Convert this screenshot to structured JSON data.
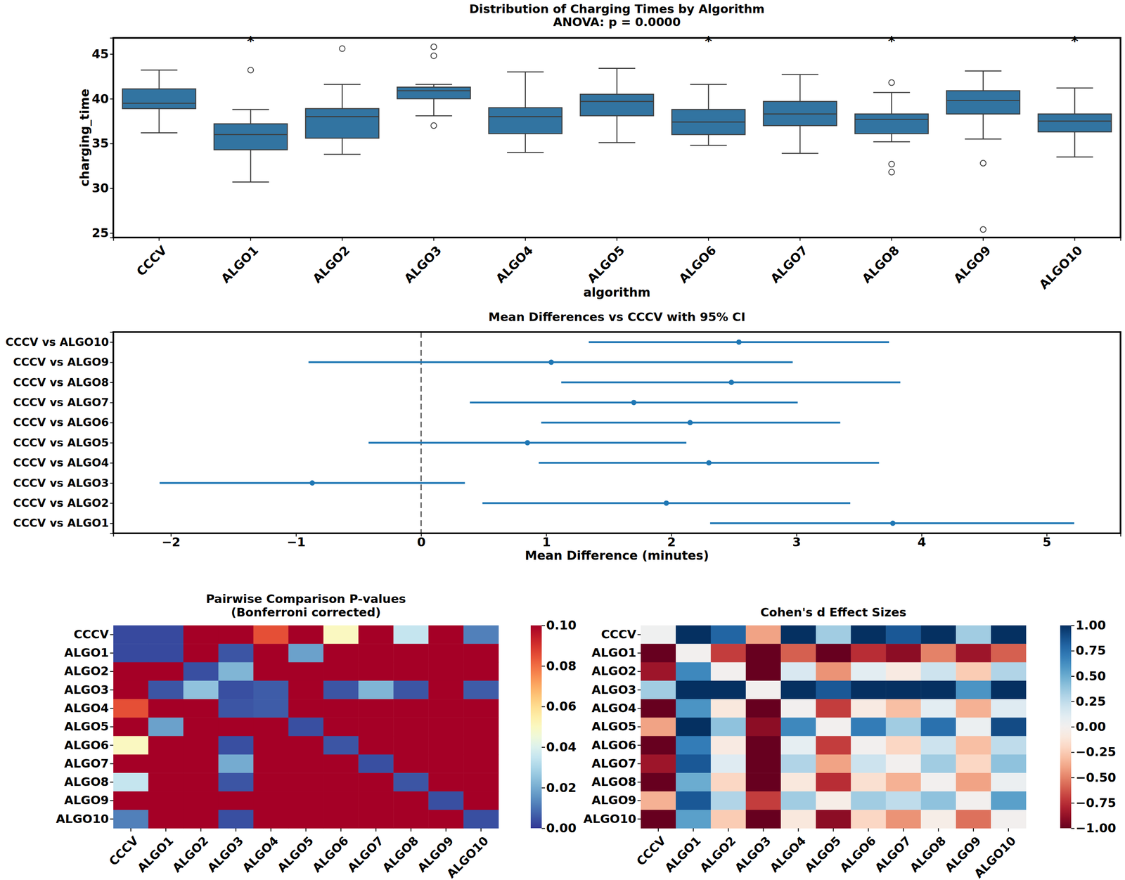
{
  "chart_data": [
    {
      "type": "box",
      "title": "Distribution of Charging Times by Algorithm",
      "subtitle": "ANOVA: p = 0.0000",
      "x_label": "algorithm",
      "y_label": "charging_time",
      "categories": [
        "CCCV",
        "ALGO1",
        "ALGO2",
        "ALGO3",
        "ALGO4",
        "ALGO5",
        "ALGO6",
        "ALGO7",
        "ALGO8",
        "ALGO9",
        "ALGO10"
      ],
      "color": "#3274a1",
      "ylim": [
        24.5,
        46.8
      ],
      "yticks": [
        25,
        30,
        35,
        40,
        45
      ],
      "boxes": [
        {
          "whisker_low": 36.2,
          "q1": 38.9,
          "median": 39.5,
          "q3": 41.1,
          "whisker_high": 43.2,
          "outliers": []
        },
        {
          "whisker_low": 30.7,
          "q1": 34.3,
          "median": 36.0,
          "q3": 37.2,
          "whisker_high": 38.8,
          "outliers": [
            43.2
          ]
        },
        {
          "whisker_low": 33.8,
          "q1": 35.6,
          "median": 38.0,
          "q3": 38.9,
          "whisker_high": 41.6,
          "outliers": [
            45.6
          ]
        },
        {
          "whisker_low": 38.1,
          "q1": 40.0,
          "median": 40.9,
          "q3": 41.3,
          "whisker_high": 41.6,
          "outliers": [
            45.8,
            44.8,
            37.0
          ]
        },
        {
          "whisker_low": 34.0,
          "q1": 36.1,
          "median": 38.0,
          "q3": 39.0,
          "whisker_high": 43.0,
          "outliers": []
        },
        {
          "whisker_low": 35.1,
          "q1": 38.1,
          "median": 39.7,
          "q3": 40.5,
          "whisker_high": 43.4,
          "outliers": []
        },
        {
          "whisker_low": 34.8,
          "q1": 36.0,
          "median": 37.4,
          "q3": 38.8,
          "whisker_high": 41.6,
          "outliers": []
        },
        {
          "whisker_low": 33.9,
          "q1": 37.0,
          "median": 38.3,
          "q3": 39.7,
          "whisker_high": 42.7,
          "outliers": []
        },
        {
          "whisker_low": 35.2,
          "q1": 36.1,
          "median": 37.7,
          "q3": 38.3,
          "whisker_high": 40.7,
          "outliers": [
            41.8,
            32.7,
            31.8
          ]
        },
        {
          "whisker_low": 35.5,
          "q1": 38.3,
          "median": 39.8,
          "q3": 40.9,
          "whisker_high": 43.1,
          "outliers": [
            32.8,
            25.4
          ]
        },
        {
          "whisker_low": 33.5,
          "q1": 36.3,
          "median": 37.5,
          "q3": 38.3,
          "whisker_high": 41.2,
          "outliers": []
        }
      ],
      "annotations": [
        {
          "category": "ALGO1",
          "text": "*"
        },
        {
          "category": "ALGO6",
          "text": "*"
        },
        {
          "category": "ALGO8",
          "text": "*"
        },
        {
          "category": "ALGO10",
          "text": "*"
        }
      ]
    },
    {
      "type": "interval",
      "orientation": "horizontal",
      "title": "Mean Differences vs CCCV with 95% CI",
      "x_label": "Mean Difference (minutes)",
      "categories": [
        "CCCV vs ALGO1",
        "CCCV vs ALGO2",
        "CCCV vs ALGO3",
        "CCCV vs ALGO4",
        "CCCV vs ALGO5",
        "CCCV vs ALGO6",
        "CCCV vs ALGO7",
        "CCCV vs ALGO8",
        "CCCV vs ALGO9",
        "CCCV vs ALGO10"
      ],
      "values": [
        3.77,
        1.96,
        -0.87,
        2.3,
        0.85,
        2.15,
        1.7,
        2.48,
        1.04,
        2.54
      ],
      "ci_low": [
        2.31,
        0.49,
        -2.09,
        0.94,
        -0.42,
        0.96,
        0.39,
        1.12,
        -0.9,
        1.34
      ],
      "ci_high": [
        5.22,
        3.43,
        0.35,
        3.66,
        2.12,
        3.35,
        3.01,
        3.83,
        2.97,
        3.74
      ],
      "reference_line": 0,
      "color": "#1f77b4",
      "xlim": [
        -2.46,
        5.59
      ],
      "xticks": [
        {
          "value": -2,
          "label": "−2"
        },
        {
          "value": -1,
          "label": "−1"
        },
        0,
        1,
        2,
        3,
        4,
        5
      ]
    },
    {
      "type": "heatmap",
      "title": "Pairwise Comparison P-values",
      "subtitle": "(Bonferroni corrected)",
      "x_categories": [
        "CCCV",
        "ALGO1",
        "ALGO2",
        "ALGO3",
        "ALGO4",
        "ALGO5",
        "ALGO6",
        "ALGO7",
        "ALGO8",
        "ALGO9",
        "ALGO10"
      ],
      "y_categories": [
        "CCCV",
        "ALGO1",
        "ALGO2",
        "ALGO3",
        "ALGO4",
        "ALGO5",
        "ALGO6",
        "ALGO7",
        "ALGO8",
        "ALGO9",
        "ALGO10"
      ],
      "color": "RdYlBu_r",
      "values": [
        [
          0.003,
          0.003,
          1,
          1,
          0.085,
          1,
          0.05,
          1,
          0.035,
          1,
          0.012
        ],
        [
          0.003,
          0.003,
          1,
          0.005,
          1,
          0.018,
          1,
          1,
          1,
          1,
          1
        ],
        [
          1,
          1,
          0.004,
          0.022,
          1,
          1,
          1,
          1,
          1,
          1,
          1
        ],
        [
          1,
          0.005,
          0.025,
          0.004,
          0.006,
          1,
          0.005,
          0.022,
          0.005,
          1,
          0.006
        ],
        [
          0.085,
          1,
          1,
          0.005,
          0.006,
          1,
          1,
          1,
          1,
          1,
          1
        ],
        [
          1,
          0.018,
          1,
          1,
          1,
          0.004,
          1,
          1,
          1,
          1,
          1
        ],
        [
          0.05,
          1,
          1,
          0.004,
          1,
          1,
          0.005,
          1,
          1,
          1,
          1
        ],
        [
          1,
          1,
          1,
          0.02,
          1,
          1,
          1,
          0.004,
          1,
          1,
          1
        ],
        [
          0.035,
          1,
          1,
          0.005,
          1,
          1,
          1,
          1,
          0.005,
          1,
          1
        ],
        [
          1,
          1,
          1,
          1,
          1,
          1,
          1,
          1,
          1,
          0.004,
          1
        ],
        [
          0.012,
          1,
          1,
          0.004,
          1,
          1,
          1,
          1,
          1,
          1,
          0.004
        ]
      ],
      "colorbar": {
        "range": [
          0,
          0.1
        ],
        "ticks": [
          {
            "value": 0,
            "label": "0.00"
          },
          {
            "value": 0.02,
            "label": "0.02"
          },
          {
            "value": 0.04,
            "label": "0.04"
          },
          {
            "value": 0.06,
            "label": "0.06"
          },
          {
            "value": 0.08,
            "label": "0.08"
          },
          {
            "value": 0.1,
            "label": "0.10"
          }
        ]
      }
    },
    {
      "type": "heatmap",
      "title": "Cohen's d Effect Sizes",
      "x_categories": [
        "CCCV",
        "ALGO1",
        "ALGO2",
        "ALGO3",
        "ALGO4",
        "ALGO5",
        "ALGO6",
        "ALGO7",
        "ALGO8",
        "ALGO9",
        "ALGO10"
      ],
      "y_categories": [
        "CCCV",
        "ALGO1",
        "ALGO2",
        "ALGO3",
        "ALGO4",
        "ALGO5",
        "ALGO6",
        "ALGO7",
        "ALGO8",
        "ALGO9",
        "ALGO10"
      ],
      "color": "RdBu",
      "values": [
        [
          0.02,
          1.0,
          0.8,
          -0.4,
          1.0,
          0.35,
          1.0,
          0.85,
          1.0,
          0.35,
          1.0
        ],
        [
          -1.0,
          0.0,
          -0.7,
          -1.0,
          -0.6,
          -1.0,
          -0.75,
          -0.9,
          -0.5,
          -0.85,
          -0.6
        ],
        [
          -0.85,
          0.65,
          0.0,
          -1.0,
          0.15,
          -0.45,
          0.1,
          -0.08,
          0.2,
          -0.25,
          0.3
        ],
        [
          0.35,
          1.0,
          1.0,
          0.0,
          1.0,
          0.85,
          1.0,
          1.0,
          1.0,
          0.6,
          1.0
        ],
        [
          -1.0,
          0.6,
          -0.1,
          -1.0,
          0.0,
          -0.7,
          -0.08,
          -0.3,
          0.1,
          -0.35,
          0.12
        ],
        [
          -0.4,
          1.0,
          0.4,
          -0.9,
          0.65,
          0.0,
          0.7,
          0.35,
          0.75,
          0.05,
          0.9
        ],
        [
          -1.0,
          0.7,
          -0.08,
          -1.0,
          0.08,
          -0.7,
          0.0,
          -0.2,
          0.2,
          -0.3,
          0.25
        ],
        [
          -0.85,
          0.85,
          0.12,
          -1.0,
          0.3,
          -0.4,
          0.2,
          0.0,
          0.35,
          -0.2,
          0.4
        ],
        [
          -1.0,
          0.5,
          -0.2,
          -1.0,
          -0.1,
          -0.75,
          -0.15,
          -0.35,
          0.0,
          -0.4,
          0.05
        ],
        [
          -0.35,
          0.85,
          0.3,
          -0.7,
          0.35,
          -0.05,
          0.35,
          0.25,
          0.4,
          0.0,
          0.55
        ],
        [
          -1.0,
          0.55,
          -0.25,
          -1.0,
          -0.1,
          -0.9,
          -0.2,
          -0.45,
          -0.05,
          -0.55,
          0.0
        ]
      ],
      "colorbar": {
        "range": [
          -1,
          1
        ],
        "ticks": [
          {
            "value": -1,
            "label": "−1.00"
          },
          {
            "value": -0.75,
            "label": "−0.75"
          },
          {
            "value": -0.5,
            "label": "−0.50"
          },
          {
            "value": -0.25,
            "label": "−0.25"
          },
          {
            "value": 0,
            "label": "0.00"
          },
          {
            "value": 0.25,
            "label": "0.25"
          },
          {
            "value": 0.5,
            "label": "0.50"
          },
          {
            "value": 0.75,
            "label": "0.75"
          },
          {
            "value": 1,
            "label": "1.00"
          }
        ]
      }
    }
  ]
}
